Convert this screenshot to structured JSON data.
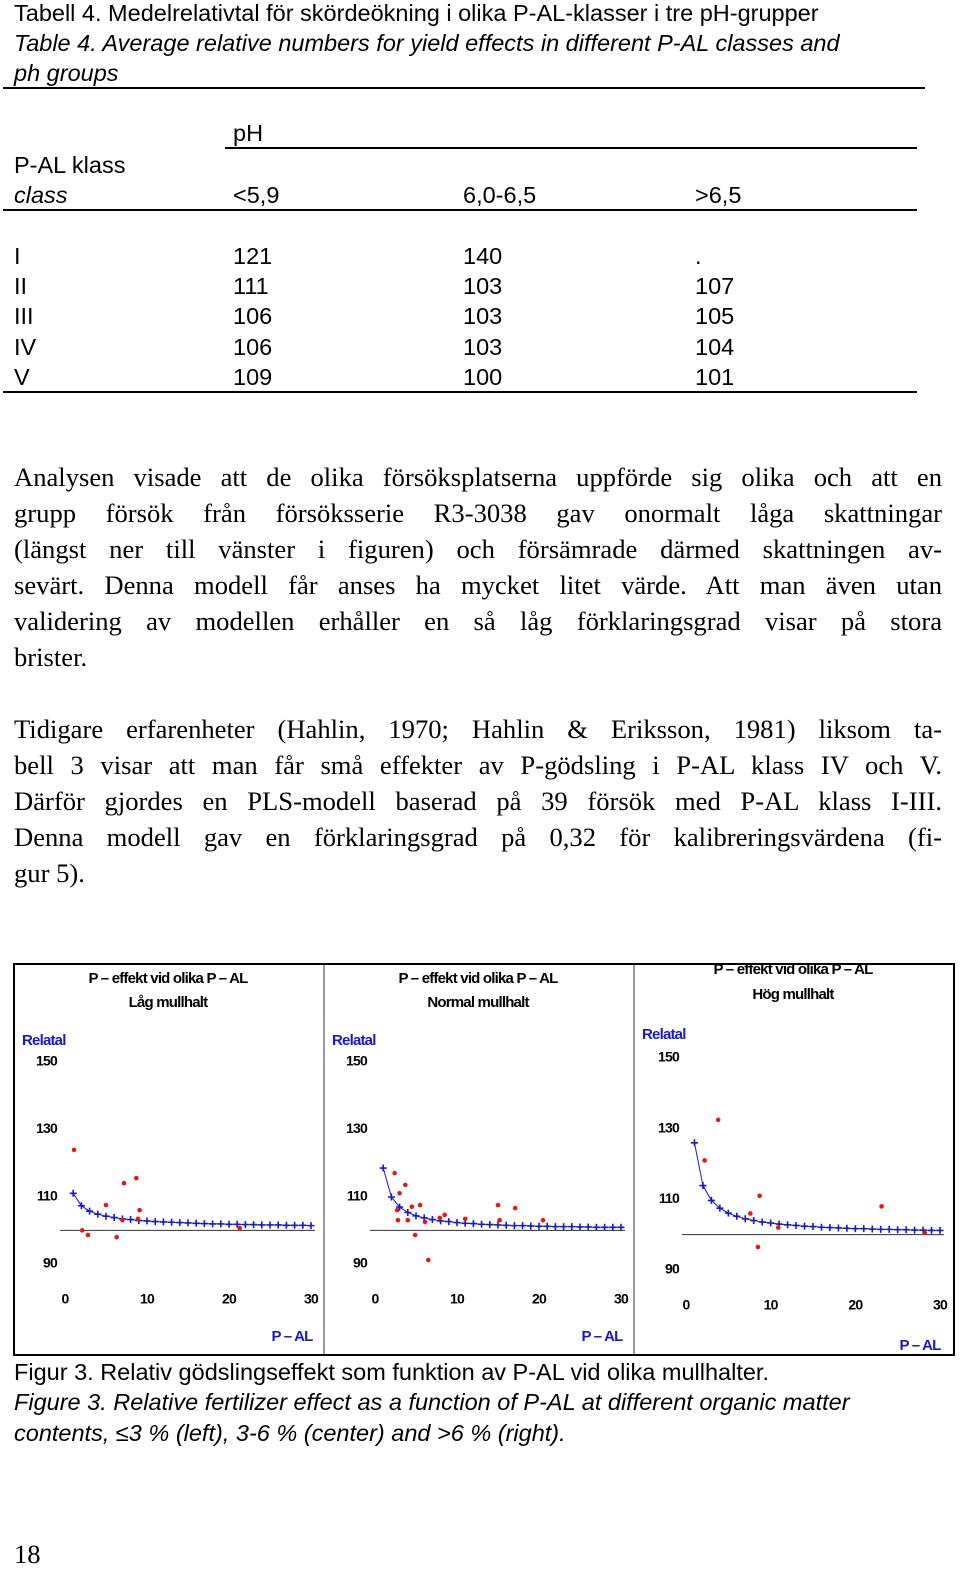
{
  "table": {
    "caption": [
      "Tabell 4. Medelrelativtal för skördeökning i olika P-AL-klasser i tre pH-grupper",
      "Table 4. Average relative numbers for yield effects in different P-AL classes and",
      "ph groups"
    ],
    "group_header": "pH",
    "row_header": [
      "P-AL klass",
      "class"
    ],
    "columns": [
      "<5,9",
      "6,0-6,5",
      ">6,5"
    ],
    "rows": [
      [
        "I",
        121,
        140,
        "."
      ],
      [
        "II",
        111,
        103,
        107
      ],
      [
        "III",
        106,
        103,
        105
      ],
      [
        "IV",
        106,
        103,
        104
      ],
      [
        "V",
        109,
        100,
        101
      ]
    ]
  },
  "paragraphs": [
    [
      "Analysen visade att de olika försöksplatserna uppförde sig olika och att en",
      "grupp försök från försöksserie R3-3038 gav onormalt låga skattningar",
      "(längst ner till vänster i figuren) och försämrade därmed skattningen av-",
      "sevärt. Denna modell får anses ha mycket litet värde. Att man även utan",
      "validering av modellen erhåller en så låg förklaringsgrad visar på stora",
      "brister."
    ],
    [
      "Tidigare erfarenheter (Hahlin, 1970; Hahlin & Eriksson, 1981) liksom ta-",
      "bell 3 visar att man får små effekter av P-gödsling i P-AL klass IV och V.",
      "Därför gjordes en PLS-modell baserad på 39 försök med P-AL klass I-III.",
      "Denna modell gav en förklaringsgrad på 0,32 för kalibreringsvärdena (fi-",
      "gur 5)."
    ]
  ],
  "figure": {
    "panels": [
      {
        "title_lines": [
          "P – effekt vid olika P – AL",
          "Låg mullhalt"
        ],
        "ylabel": "Relatal",
        "xlabel": "P – AL",
        "xlim": [
          0,
          30
        ],
        "ylim": [
          90,
          150
        ],
        "xticks": [
          0,
          10,
          20,
          30
        ],
        "yticks": [
          90,
          110,
          130,
          150
        ],
        "reference_line": 100,
        "observed": {
          "color": "#e01818",
          "x": [
            1.1,
            2.1,
            2.8,
            5,
            6.3,
            7,
            7.2,
            8.7,
            8.9,
            9.1,
            21.3
          ],
          "values": [
            123.9,
            100,
            98.6,
            107.5,
            98,
            103,
            114,
            115.5,
            103.4,
            106,
            100.7
          ]
        },
        "fitted": {
          "color": "#1818c8",
          "x": [
            1,
            2,
            3,
            4,
            5,
            6,
            7,
            8,
            9,
            10,
            11,
            12,
            13,
            14,
            15,
            16,
            17,
            18,
            19,
            20,
            21,
            22,
            23,
            24,
            25,
            26,
            27,
            28,
            29,
            30
          ],
          "values": [
            111.0,
            107.3,
            105.7,
            104.8,
            104.2,
            103.8,
            103.4,
            103.2,
            102.9,
            102.8,
            102.6,
            102.5,
            102.4,
            102.3,
            102.2,
            102.1,
            102.0,
            101.9,
            101.9,
            101.8,
            101.8,
            101.7,
            101.7,
            101.6,
            101.6,
            101.6,
            101.5,
            101.5,
            101.5,
            101.4
          ]
        }
      },
      {
        "title_lines": [
          "P – effekt vid olika P – AL",
          "Normal mullhalt"
        ],
        "ylabel": "Relatal",
        "xlabel": "P – AL",
        "xlim": [
          0,
          30
        ],
        "ylim": [
          90,
          150
        ],
        "xticks": [
          0,
          10,
          20,
          30
        ],
        "yticks": [
          90,
          110,
          130,
          150
        ],
        "reference_line": 100,
        "observed": {
          "color": "#e01818",
          "x": [
            2.4,
            3,
            3.7,
            2.7,
            2.8,
            4,
            4.5,
            4.9,
            5.5,
            6.1,
            6.5,
            7.9,
            8.5,
            11,
            15,
            17.1,
            15.2,
            20.5
          ],
          "values": [
            117,
            111,
            113.5,
            106,
            103,
            103,
            107,
            98.6,
            107.5,
            102.5,
            91.2,
            103.7,
            104.6,
            103.4,
            107.5,
            106.6,
            103,
            103
          ]
        },
        "fitted": {
          "color": "#1818c8",
          "x": [
            1,
            2,
            3,
            4,
            5,
            6,
            7,
            8,
            9,
            10,
            11,
            12,
            13,
            14,
            15,
            16,
            17,
            18,
            19,
            20,
            21,
            22,
            23,
            24,
            25,
            26,
            27,
            28,
            29,
            30
          ],
          "values": [
            118.5,
            109.9,
            106.9,
            105.3,
            104.3,
            103.7,
            103.2,
            102.8,
            102.6,
            102.3,
            102.1,
            102.0,
            101.8,
            101.7,
            101.6,
            101.5,
            101.4,
            101.4,
            101.3,
            101.2,
            101.2,
            101.1,
            101.1,
            101.1,
            101.0,
            101.0,
            100.9,
            100.9,
            100.9,
            100.9
          ]
        }
      },
      {
        "title_lines": [
          "P – effekt vid olika P – AL",
          "Hög mullhalt"
        ],
        "ylabel": "Relatal",
        "xlabel": "P – AL",
        "xlim": [
          0,
          30
        ],
        "ylim": [
          90,
          150
        ],
        "xticks": [
          0,
          10,
          20,
          30
        ],
        "yticks": [
          90,
          110,
          130,
          150
        ],
        "reference_line": 100,
        "observed": {
          "color": "#e01818",
          "x": [
            3.8,
            2.2,
            8.7,
            7.6,
            10.9,
            8.5,
            23.1,
            28.2
          ],
          "values": [
            132.5,
            121,
            111,
            106,
            102,
            96.5,
            108,
            100.5
          ]
        },
        "fitted": {
          "color": "#1818c8",
          "x": [
            1,
            2,
            3,
            4,
            5,
            6,
            7,
            8,
            9,
            10,
            11,
            12,
            13,
            14,
            15,
            16,
            17,
            18,
            19,
            20,
            21,
            22,
            23,
            24,
            25,
            26,
            27,
            28,
            29,
            30
          ],
          "values": [
            126.0,
            113.9,
            109.7,
            107.5,
            106.1,
            105.2,
            104.5,
            104.0,
            103.6,
            103.3,
            103.0,
            102.8,
            102.6,
            102.4,
            102.3,
            102.1,
            102.0,
            101.9,
            101.8,
            101.7,
            101.7,
            101.6,
            101.5,
            101.5,
            101.4,
            101.4,
            101.3,
            101.3,
            101.2,
            101.2
          ]
        }
      }
    ],
    "caption": "Figur 3. Relativ gödslingseffekt som funktion av P-AL vid olika mullhalter.",
    "caption_en": [
      "Figure 3. Relative fertilizer effect as a function of P-AL at different organic matter",
      "contents, ≤3 % (left), 3-6 % (center) and >6 % (right)."
    ]
  },
  "page_number": 18
}
